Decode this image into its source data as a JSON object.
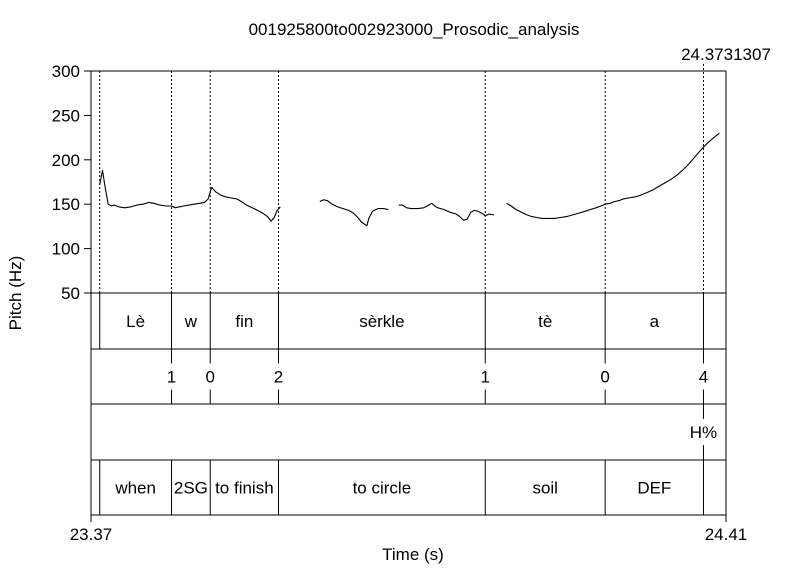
{
  "chart_data": {
    "type": "line",
    "title": "001925800to002923000_Prosodic_analysis",
    "cursor_label": "24.3731307",
    "xlabel": "Time (s)",
    "ylabel": "Pitch (Hz)",
    "xlim": [
      23.37,
      24.41
    ],
    "x_tick_labels": [
      "23.37",
      "24.41"
    ],
    "ylim": [
      50,
      300
    ],
    "y_ticks": [
      50,
      100,
      150,
      200,
      250,
      300
    ],
    "y_tick_labels": [
      "50",
      "100",
      "150",
      "200",
      "250",
      "300"
    ],
    "boundaries": [
      23.3843,
      23.5019,
      23.5653,
      23.6771,
      24.0157,
      24.2121,
      24.3731
    ],
    "series": [
      {
        "segments": [
          [
            [
              23.3843,
              172
            ],
            [
              23.3889,
              188
            ],
            [
              23.3935,
              168
            ],
            [
              23.3981,
              150
            ],
            [
              23.4035,
              148
            ],
            [
              23.4081,
              149
            ],
            [
              23.4158,
              147
            ],
            [
              23.425,
              146
            ],
            [
              23.435,
              147
            ],
            [
              23.445,
              149
            ],
            [
              23.455,
              150
            ],
            [
              23.465,
              152
            ],
            [
              23.473,
              151
            ],
            [
              23.483,
              149
            ],
            [
              23.493,
              148
            ],
            [
              23.5019,
              148
            ],
            [
              23.508,
              146
            ],
            [
              23.514,
              147
            ],
            [
              23.522,
              148
            ],
            [
              23.53,
              149
            ],
            [
              23.539,
              150
            ],
            [
              23.548,
              151
            ],
            [
              23.556,
              152
            ],
            [
              23.562,
              156
            ],
            [
              23.5676,
              169
            ],
            [
              23.574,
              164
            ],
            [
              23.583,
              160
            ],
            [
              23.592,
              158
            ],
            [
              23.6,
              157
            ],
            [
              23.609,
              156
            ],
            [
              23.616,
              153
            ],
            [
              23.625,
              149
            ],
            [
              23.634,
              146
            ],
            [
              23.643,
              143
            ],
            [
              23.651,
              140
            ],
            [
              23.659,
              136
            ],
            [
              23.665,
              131
            ],
            [
              23.67,
              135
            ],
            [
              23.675,
              143
            ],
            [
              23.68,
              147
            ]
          ],
          [
            [
              23.7448,
              153
            ],
            [
              23.751,
              155
            ],
            [
              23.757,
              154
            ],
            [
              23.765,
              150
            ],
            [
              23.774,
              147
            ],
            [
              23.783,
              145
            ],
            [
              23.792,
              143
            ],
            [
              23.8,
              140
            ],
            [
              23.807,
              135
            ],
            [
              23.813,
              130
            ],
            [
              23.819,
              127
            ],
            [
              23.822,
              126
            ],
            [
              23.825,
              134
            ],
            [
              23.831,
              142
            ],
            [
              23.84,
              145
            ],
            [
              23.849,
              145
            ],
            [
              23.857,
              144
            ]
          ],
          [
            [
              23.8741,
              149
            ],
            [
              23.88,
              149
            ],
            [
              23.887,
              146
            ],
            [
              23.895,
              145
            ],
            [
              23.905,
              145
            ],
            [
              23.915,
              146
            ],
            [
              23.923,
              149
            ],
            [
              23.928,
              151
            ],
            [
              23.933,
              148
            ],
            [
              23.938,
              146
            ],
            [
              23.948,
              144
            ],
            [
              23.958,
              141
            ],
            [
              23.968,
              139
            ],
            [
              23.974,
              136
            ],
            [
              23.98,
              132
            ],
            [
              23.986,
              133
            ],
            [
              23.992,
              141
            ],
            [
              23.998,
              143
            ],
            [
              24.004,
              142
            ],
            [
              24.012,
              139
            ],
            [
              24.0157,
              137
            ],
            [
              24.022,
              139
            ],
            [
              24.03,
              138
            ]
          ],
          [
            [
              24.0505,
              151
            ],
            [
              24.058,
              148
            ],
            [
              24.066,
              144
            ],
            [
              24.075,
              141
            ],
            [
              24.084,
              138
            ],
            [
              24.092,
              136
            ],
            [
              24.1,
              135
            ],
            [
              24.109,
              134
            ],
            [
              24.119,
              134
            ],
            [
              24.129,
              134
            ],
            [
              24.139,
              135
            ],
            [
              24.149,
              136
            ],
            [
              24.159,
              138
            ],
            [
              24.169,
              140
            ],
            [
              24.179,
              142
            ],
            [
              24.188,
              144
            ],
            [
              24.197,
              146
            ],
            [
              24.205,
              148
            ],
            [
              24.2121,
              150
            ],
            [
              24.22,
              151
            ],
            [
              24.228,
              153
            ],
            [
              24.235,
              154
            ],
            [
              24.242,
              156
            ],
            [
              24.25,
              157
            ],
            [
              24.26,
              158
            ],
            [
              24.27,
              160
            ],
            [
              24.28,
              163
            ],
            [
              24.29,
              166
            ],
            [
              24.3,
              170
            ],
            [
              24.31,
              174
            ],
            [
              24.32,
              178
            ],
            [
              24.33,
              183
            ],
            [
              24.34,
              189
            ],
            [
              24.35,
              196
            ],
            [
              24.36,
              204
            ],
            [
              24.37,
              212
            ],
            [
              24.38,
              219
            ],
            [
              24.39,
              225
            ],
            [
              24.399,
              230
            ]
          ]
        ]
      }
    ],
    "tiers": [
      {
        "intervals": [
          {
            "start": 23.3843,
            "end": 23.5019,
            "label": "Lè"
          },
          {
            "start": 23.5019,
            "end": 23.5653,
            "label": "w"
          },
          {
            "start": 23.5653,
            "end": 23.6771,
            "label": "fin"
          },
          {
            "start": 23.6771,
            "end": 24.0157,
            "label": "sèrkle"
          },
          {
            "start": 24.0157,
            "end": 24.2121,
            "label": "tè"
          },
          {
            "start": 24.2121,
            "end": 24.3731,
            "label": "a"
          }
        ]
      },
      {
        "points": [
          {
            "time": 23.5019,
            "label": "1"
          },
          {
            "time": 23.5653,
            "label": "0"
          },
          {
            "time": 23.6771,
            "label": "2"
          },
          {
            "time": 24.0157,
            "label": "1"
          },
          {
            "time": 24.2121,
            "label": "0"
          },
          {
            "time": 24.3731,
            "label": "4"
          }
        ]
      },
      {
        "points": [
          {
            "time": 24.3731,
            "label": "H%"
          }
        ]
      },
      {
        "intervals": [
          {
            "start": 23.3843,
            "end": 23.5019,
            "label": "when"
          },
          {
            "start": 23.5019,
            "end": 23.5653,
            "label": "2SG"
          },
          {
            "start": 23.5653,
            "end": 23.6771,
            "label": "to finish"
          },
          {
            "start": 23.6771,
            "end": 24.0157,
            "label": "to circle"
          },
          {
            "start": 24.0157,
            "end": 24.2121,
            "label": "soil"
          },
          {
            "start": 24.2121,
            "end": 24.3731,
            "label": "DEF"
          }
        ]
      }
    ]
  }
}
